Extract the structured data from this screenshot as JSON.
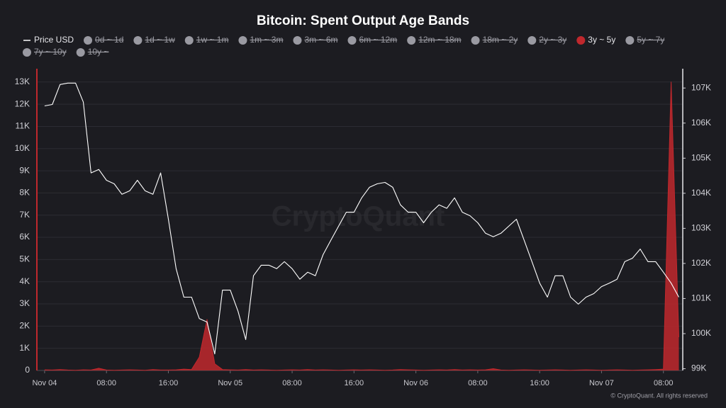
{
  "chart_data": {
    "type": "line",
    "title": "Bitcoin: Spent Output Age Bands",
    "watermark": "CryptoQuant",
    "footer": "© CryptoQuant. All rights reserved",
    "x": [
      0,
      1,
      2,
      3,
      4,
      5,
      6,
      7,
      8,
      9,
      10,
      11,
      12,
      13,
      14,
      15,
      16,
      17,
      18,
      19,
      20,
      21,
      22,
      23,
      24,
      25,
      26,
      27,
      28,
      29,
      30,
      31,
      32,
      33,
      34,
      35,
      36,
      37,
      38,
      39,
      40,
      41,
      42,
      43,
      44,
      45,
      46,
      47,
      48,
      49,
      50,
      51,
      52,
      53,
      54,
      55,
      56,
      57,
      58,
      59,
      60,
      61,
      62,
      63,
      64,
      65,
      66,
      67,
      68,
      69,
      70,
      71,
      72,
      73,
      74,
      75,
      76,
      77,
      78,
      79,
      80,
      81,
      82
    ],
    "xlim": [
      -1,
      82.5
    ],
    "xticks": [
      {
        "value": 0,
        "label": "Nov 04"
      },
      {
        "value": 8,
        "label": "08:00"
      },
      {
        "value": 16,
        "label": "16:00"
      },
      {
        "value": 24,
        "label": "Nov 05"
      },
      {
        "value": 32,
        "label": "08:00"
      },
      {
        "value": 40,
        "label": "16:00"
      },
      {
        "value": 48,
        "label": "Nov 06"
      },
      {
        "value": 56,
        "label": "08:00"
      },
      {
        "value": 64,
        "label": "16:00"
      },
      {
        "value": 72,
        "label": "Nov 07"
      },
      {
        "value": 80,
        "label": "08:00"
      }
    ],
    "ylim": [
      0,
      13600
    ],
    "yticks": [
      {
        "value": 0,
        "label": "0"
      },
      {
        "value": 1000,
        "label": "1K"
      },
      {
        "value": 2000,
        "label": "2K"
      },
      {
        "value": 3000,
        "label": "3K"
      },
      {
        "value": 4000,
        "label": "4K"
      },
      {
        "value": 5000,
        "label": "5K"
      },
      {
        "value": 6000,
        "label": "6K"
      },
      {
        "value": 7000,
        "label": "7K"
      },
      {
        "value": 8000,
        "label": "8K"
      },
      {
        "value": 9000,
        "label": "9K"
      },
      {
        "value": 10000,
        "label": "10K"
      },
      {
        "value": 11000,
        "label": "11K"
      },
      {
        "value": 12000,
        "label": "12K"
      },
      {
        "value": 13000,
        "label": "13K"
      }
    ],
    "y2lim": [
      98950,
      107550
    ],
    "y2ticks": [
      {
        "value": 99000,
        "label": "99K"
      },
      {
        "value": 100000,
        "label": "100K"
      },
      {
        "value": 101000,
        "label": "101K"
      },
      {
        "value": 102000,
        "label": "102K"
      },
      {
        "value": 103000,
        "label": "103K"
      },
      {
        "value": 104000,
        "label": "104K"
      },
      {
        "value": 105000,
        "label": "105K"
      },
      {
        "value": 106000,
        "label": "106K"
      },
      {
        "value": 107000,
        "label": "107K"
      }
    ],
    "grid": true,
    "series": [
      {
        "name": "Price USD",
        "color": "#ffffff",
        "axis": "y2",
        "values": [
          106490,
          106530,
          107100,
          107140,
          107140,
          106600,
          104580,
          104680,
          104370,
          104270,
          103970,
          104070,
          104370,
          104070,
          103970,
          104580,
          103260,
          101850,
          101040,
          101040,
          100430,
          100330,
          99420,
          101240,
          101240,
          100640,
          99830,
          101650,
          101950,
          101950,
          101850,
          102050,
          101850,
          101550,
          101750,
          101650,
          102250,
          102660,
          103060,
          103460,
          103460,
          103870,
          104170,
          104270,
          104310,
          104170,
          103670,
          103460,
          103460,
          103160,
          103460,
          103670,
          103570,
          103870,
          103460,
          103360,
          103160,
          102860,
          102760,
          102860,
          103060,
          103260,
          102660,
          102050,
          101440,
          101040,
          101650,
          101650,
          101040,
          100840,
          101040,
          101140,
          101340,
          101440,
          101550,
          102050,
          102150,
          102410,
          102050,
          102050,
          101750,
          101440,
          101040
        ]
      },
      {
        "name": "3y ~ 5y",
        "color": "#c0282d",
        "area": true,
        "values": [
          30,
          20,
          40,
          20,
          10,
          30,
          20,
          100,
          20,
          10,
          20,
          30,
          20,
          10,
          40,
          20,
          20,
          30,
          60,
          40,
          600,
          2300,
          300,
          40,
          30,
          20,
          40,
          20,
          30,
          20,
          10,
          20,
          30,
          20,
          40,
          20,
          30,
          20,
          10,
          20,
          30,
          20,
          30,
          20,
          10,
          20,
          40,
          30,
          20,
          10,
          20,
          30,
          20,
          40,
          20,
          30,
          20,
          30,
          80,
          20,
          10,
          20,
          30,
          20,
          10,
          20,
          30,
          20,
          10,
          20,
          30,
          20,
          10,
          20,
          30,
          20,
          10,
          20,
          30,
          40,
          60,
          13000,
          1500
        ]
      }
    ],
    "hidden_series": [
      "0d ~ 1d",
      "1d ~ 1w",
      "1w ~ 1m",
      "1m ~ 3m",
      "3m ~ 6m",
      "6m ~ 12m",
      "12m ~ 18m",
      "18m ~ 2y",
      "2y ~ 3y",
      "5y ~ 7y",
      "7y ~ 10y",
      "10y ~"
    ],
    "hidden_color": "#9a9aa2"
  }
}
